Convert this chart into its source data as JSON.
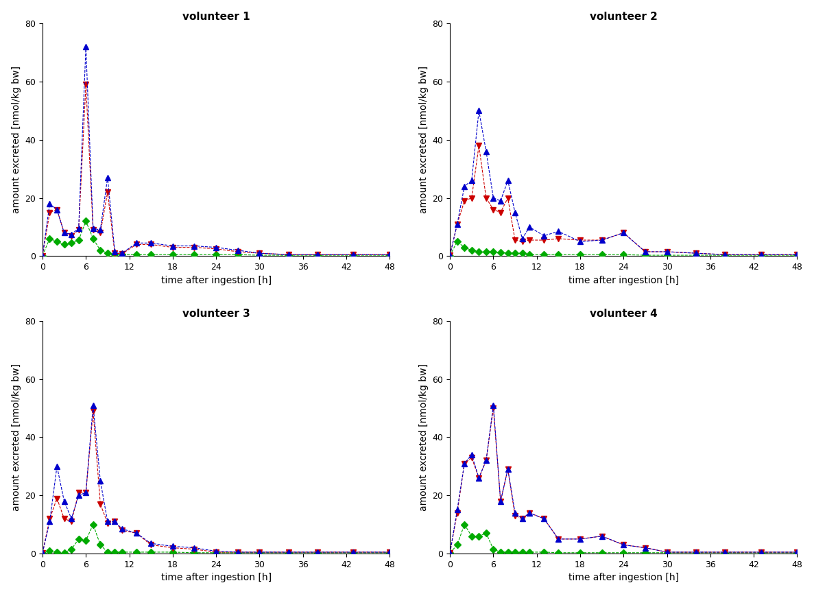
{
  "volunteers": [
    "volunteer 1",
    "volunteer 2",
    "volunteer 3",
    "volunteer 4"
  ],
  "xlabel": "time after ingestion [h]",
  "ylabel": "amount excreted [nmol/kg bw]",
  "xlim": [
    0,
    48
  ],
  "ylim": [
    0,
    80
  ],
  "xticks": [
    0,
    6,
    12,
    18,
    24,
    30,
    36,
    42,
    48
  ],
  "yticks": [
    0,
    20,
    40,
    60,
    80
  ],
  "colors": {
    "MEHP": "#00aa00",
    "5OH": "#cc0000",
    "5oxo": "#0000cc"
  },
  "series": {
    "v1": {
      "t": [
        0,
        1,
        2,
        3,
        4,
        5,
        6,
        7,
        8,
        9,
        10,
        11,
        13,
        15,
        18,
        21,
        24,
        27,
        30,
        34,
        38,
        43,
        48
      ],
      "MEHP": [
        0.2,
        6,
        5,
        4,
        4.5,
        5.5,
        12,
        6,
        2,
        1,
        0.5,
        0.5,
        0.5,
        0.5,
        0.5,
        0.5,
        0.5,
        0.5,
        0.3,
        0.3,
        0.3,
        0.3,
        0.3
      ],
      "5OH": [
        0.2,
        15,
        16,
        8,
        7,
        9,
        59,
        9,
        8,
        22,
        1,
        0.8,
        4,
        4,
        3,
        3,
        2.5,
        1.5,
        1,
        0.5,
        0.5,
        0.5,
        0.5
      ],
      "5oxo": [
        0.2,
        18,
        16,
        8,
        7.5,
        9.5,
        72,
        9.5,
        9,
        27,
        1.5,
        1,
        4.5,
        4.5,
        3.5,
        3.5,
        3,
        2,
        1,
        0.5,
        0.5,
        0.5,
        0.5
      ]
    },
    "v2": {
      "t": [
        0,
        1,
        2,
        3,
        4,
        5,
        6,
        7,
        8,
        9,
        10,
        11,
        13,
        15,
        18,
        21,
        24,
        27,
        30,
        34,
        38,
        43,
        48
      ],
      "MEHP": [
        0.2,
        5,
        3,
        2,
        1.5,
        1.5,
        1.5,
        1.2,
        1,
        1,
        1,
        0.5,
        0.5,
        0.5,
        0.5,
        0.5,
        0.5,
        0.3,
        0.3,
        0.3,
        0.3,
        0.3,
        0.3
      ],
      "5OH": [
        0.3,
        11,
        19,
        20,
        38,
        20,
        16,
        15,
        20,
        5.5,
        5,
        5.5,
        5.5,
        6,
        5.5,
        5.5,
        8,
        1.5,
        1.5,
        1,
        0.5,
        0.5,
        0.5
      ],
      "5oxo": [
        0.3,
        11,
        24,
        26,
        50,
        36,
        20,
        19,
        26,
        15,
        6,
        10,
        7,
        8.5,
        5,
        5.5,
        8,
        1.5,
        1.5,
        1,
        0.5,
        0.5,
        0.5
      ]
    },
    "v3": {
      "t": [
        0,
        1,
        2,
        3,
        4,
        5,
        6,
        7,
        8,
        9,
        10,
        11,
        13,
        15,
        18,
        21,
        24,
        27,
        30,
        34,
        38,
        43,
        48
      ],
      "MEHP": [
        0.2,
        1,
        0.5,
        0.3,
        1.5,
        5,
        4.5,
        10,
        3,
        0.5,
        0.5,
        0.5,
        0.5,
        0.5,
        0.5,
        0.3,
        0.3,
        0.3,
        0.3,
        0.3,
        0.3,
        0.3,
        0.3
      ],
      "5OH": [
        0.2,
        12,
        19,
        12,
        11,
        21,
        21,
        49,
        17,
        10.5,
        11,
        8,
        7,
        3,
        2,
        1.5,
        0.5,
        0.5,
        0.5,
        0.5,
        0.5,
        0.5,
        0.5
      ],
      "5oxo": [
        0.2,
        11,
        30,
        18,
        12,
        20,
        21,
        51,
        25,
        11,
        11,
        8.5,
        7,
        3.5,
        2.5,
        2,
        0.8,
        0.5,
        0.5,
        0.5,
        0.5,
        0.5,
        0.5
      ]
    },
    "v4": {
      "t": [
        0,
        1,
        2,
        3,
        4,
        5,
        6,
        7,
        8,
        9,
        10,
        11,
        13,
        15,
        18,
        21,
        24,
        27,
        30,
        34,
        38,
        43,
        48
      ],
      "MEHP": [
        0.2,
        3,
        10,
        6,
        6,
        7,
        1.5,
        0.5,
        0.5,
        0.5,
        0.5,
        0.5,
        0.5,
        0.3,
        0.3,
        0.3,
        0.3,
        0.3,
        0.3,
        0.3,
        0.3,
        0.3,
        0.3
      ],
      "5OH": [
        0.2,
        14,
        31,
        33,
        26,
        32,
        50,
        18,
        29,
        13,
        12,
        14,
        12,
        5,
        5,
        6,
        3,
        2,
        0.5,
        0.5,
        0.5,
        0.5,
        0.5
      ],
      "5oxo": [
        0.2,
        15,
        31,
        34,
        26,
        32,
        51,
        18,
        29,
        14,
        12,
        14,
        12,
        5,
        5,
        6,
        3,
        2,
        0.5,
        0.5,
        0.5,
        0.5,
        0.5
      ]
    }
  }
}
